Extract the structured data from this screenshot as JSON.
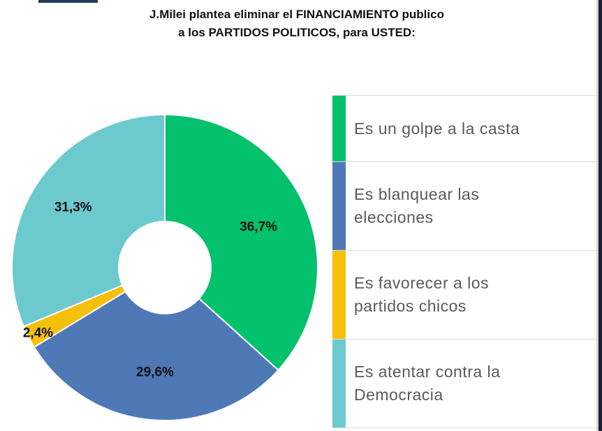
{
  "title_line1": "J.Milei plantea eliminar el FINANCIAMIENTO publico",
  "title_line2": "a los PARTIDOS POLITICOS, para USTED:",
  "chart_data": {
    "type": "pie",
    "categories": [
      "Es un golpe a la casta",
      "Es blanquear las elecciones",
      "Es favorecer a los partidos chicos",
      "Es atentar contra la Democracia"
    ],
    "values": [
      36.7,
      29.6,
      2.4,
      31.3
    ],
    "value_labels": [
      "36,7%",
      "29,6%",
      "2,4%",
      "31,3%"
    ],
    "colors": [
      "#03c16c",
      "#4f79b6",
      "#f5c00a",
      "#6ccace"
    ],
    "legend_position": "right",
    "donut": true
  },
  "legend": [
    {
      "line1": "Es un golpe a la casta",
      "line2": ""
    },
    {
      "line1": "Es blanquear las",
      "line2": "elecciones"
    },
    {
      "line1": "Es favorecer a los",
      "line2": "partidos chicos"
    },
    {
      "line1": "Es atentar contra la",
      "line2": "Democracia"
    }
  ]
}
